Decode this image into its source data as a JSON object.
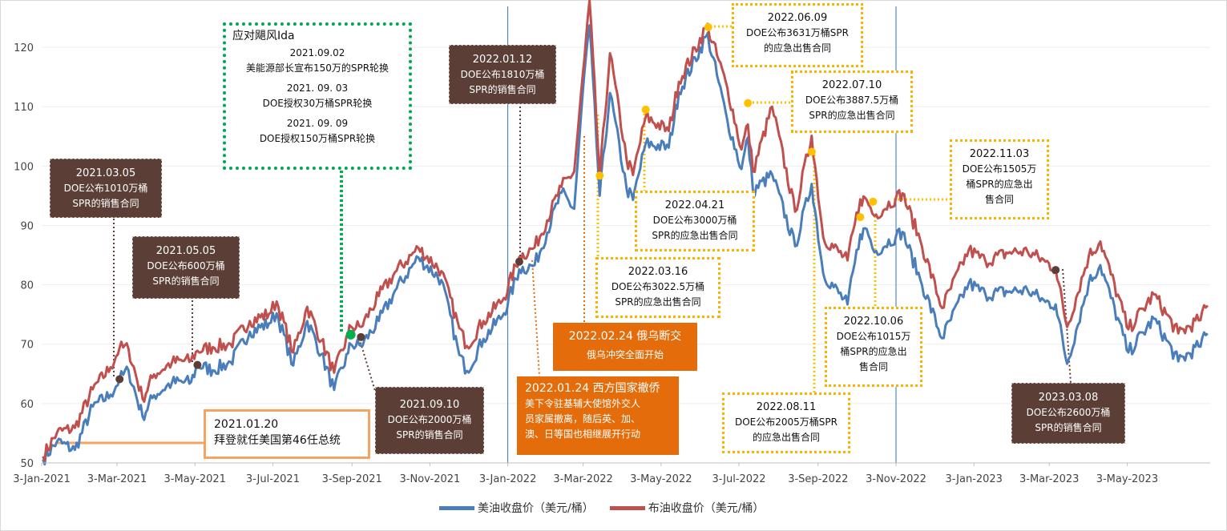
{
  "chart_data": {
    "type": "line",
    "title": "",
    "xlabel": "",
    "ylabel": "",
    "ylim": [
      50,
      125
    ],
    "yticks": [
      50,
      60,
      70,
      80,
      90,
      100,
      110,
      120
    ],
    "x_range": [
      "2021-01-03",
      "2023-07-07"
    ],
    "x_tick_labels": [
      "3-Jan-2021",
      "3-Mar-2021",
      "3-May-2021",
      "3-Jul-2021",
      "3-Sep-2021",
      "3-Nov-2021",
      "3-Jan-2022",
      "3-Mar-2022",
      "3-May-2022",
      "3-Jul-2022",
      "3-Sep-2022",
      "3-Nov-2022",
      "3-Jan-2023",
      "3-Mar-2023",
      "3-May-2023"
    ],
    "x_tick_dates": [
      "2021-01-03",
      "2021-03-03",
      "2021-05-03",
      "2021-07-03",
      "2021-09-03",
      "2021-11-03",
      "2022-01-03",
      "2022-03-03",
      "2022-05-03",
      "2022-07-03",
      "2022-09-03",
      "2022-11-03",
      "2023-01-03",
      "2023-03-03",
      "2023-05-03"
    ],
    "vertical_lines": [
      "2022-01-03",
      "2022-11-03"
    ],
    "series": [
      {
        "name": "美油收盘价（美元/桶）",
        "color": "#4a7ebb",
        "points": [
          [
            "2021-01-04",
            50.6
          ],
          [
            "2021-01-15",
            53.6
          ],
          [
            "2021-01-29",
            52.2
          ],
          [
            "2021-02-12",
            59.5
          ],
          [
            "2021-02-26",
            61.5
          ],
          [
            "2021-03-05",
            64.1
          ],
          [
            "2021-03-12",
            65.6
          ],
          [
            "2021-03-23",
            57.8
          ],
          [
            "2021-04-01",
            61.4
          ],
          [
            "2021-04-15",
            63.5
          ],
          [
            "2021-04-30",
            63.6
          ],
          [
            "2021-05-05",
            66.5
          ],
          [
            "2021-05-17",
            65.6
          ],
          [
            "2021-05-31",
            67.0
          ],
          [
            "2021-06-15",
            72.1
          ],
          [
            "2021-06-30",
            73.5
          ],
          [
            "2021-07-06",
            75.2
          ],
          [
            "2021-07-19",
            66.4
          ],
          [
            "2021-07-30",
            73.9
          ],
          [
            "2021-08-10",
            68.3
          ],
          [
            "2021-08-20",
            62.3
          ],
          [
            "2021-08-31",
            68.5
          ],
          [
            "2021-09-02",
            70.0
          ],
          [
            "2021-09-10",
            69.7
          ],
          [
            "2021-09-24",
            73.9
          ],
          [
            "2021-10-08",
            79.4
          ],
          [
            "2021-10-25",
            84.6
          ],
          [
            "2021-11-12",
            80.8
          ],
          [
            "2021-11-26",
            68.2
          ],
          [
            "2021-12-02",
            65.5
          ],
          [
            "2021-12-15",
            70.9
          ],
          [
            "2021-12-31",
            75.2
          ],
          [
            "2022-01-12",
            82.6
          ],
          [
            "2022-01-24",
            83.3
          ],
          [
            "2022-02-14",
            95.5
          ],
          [
            "2022-02-24",
            92.8
          ],
          [
            "2022-03-04",
            115.7
          ],
          [
            "2022-03-08",
            123.7
          ],
          [
            "2022-03-16",
            95.0
          ],
          [
            "2022-03-24",
            112.3
          ],
          [
            "2022-04-06",
            96.2
          ],
          [
            "2022-04-11",
            94.3
          ],
          [
            "2022-04-21",
            103.8
          ],
          [
            "2022-05-09",
            103.1
          ],
          [
            "2022-05-17",
            112.4
          ],
          [
            "2022-06-08",
            122.1
          ],
          [
            "2022-06-09",
            121.5
          ],
          [
            "2022-06-24",
            107.6
          ],
          [
            "2022-07-05",
            99.5
          ],
          [
            "2022-07-10",
            104.8
          ],
          [
            "2022-07-14",
            95.8
          ],
          [
            "2022-07-29",
            98.6
          ],
          [
            "2022-08-16",
            86.5
          ],
          [
            "2022-08-29",
            97.0
          ],
          [
            "2022-09-07",
            81.9
          ],
          [
            "2022-09-26",
            76.7
          ],
          [
            "2022-10-06",
            88.5
          ],
          [
            "2022-10-11",
            89.4
          ],
          [
            "2022-10-17",
            85.5
          ],
          [
            "2022-11-03",
            88.2
          ],
          [
            "2022-11-08",
            88.9
          ],
          [
            "2022-11-22",
            80.9
          ],
          [
            "2022-12-09",
            71.0
          ],
          [
            "2022-12-30",
            80.3
          ],
          [
            "2023-01-12",
            78.4
          ],
          [
            "2023-01-31",
            78.9
          ],
          [
            "2023-02-14",
            79.1
          ],
          [
            "2023-02-28",
            77.1
          ],
          [
            "2023-03-08",
            76.7
          ],
          [
            "2023-03-17",
            66.7
          ],
          [
            "2023-04-03",
            80.4
          ],
          [
            "2023-04-12",
            83.3
          ],
          [
            "2023-05-04",
            68.6
          ],
          [
            "2023-05-24",
            74.3
          ],
          [
            "2023-06-12",
            67.1
          ],
          [
            "2023-06-28",
            69.6
          ],
          [
            "2023-07-05",
            71.8
          ]
        ]
      },
      {
        "name": "布油收盘价（美元/桶）",
        "color": "#c0504d",
        "points": [
          [
            "2021-01-04",
            51.1
          ],
          [
            "2021-01-15",
            55.1
          ],
          [
            "2021-01-29",
            55.9
          ],
          [
            "2021-02-12",
            62.4
          ],
          [
            "2021-02-26",
            66.1
          ],
          [
            "2021-03-05",
            69.4
          ],
          [
            "2021-03-12",
            69.2
          ],
          [
            "2021-03-23",
            60.8
          ],
          [
            "2021-04-01",
            64.9
          ],
          [
            "2021-04-15",
            66.9
          ],
          [
            "2021-04-30",
            67.3
          ],
          [
            "2021-05-05",
            68.9
          ],
          [
            "2021-05-17",
            69.5
          ],
          [
            "2021-05-31",
            70.0
          ],
          [
            "2021-06-15",
            73.9
          ],
          [
            "2021-06-30",
            75.1
          ],
          [
            "2021-07-06",
            77.2
          ],
          [
            "2021-07-19",
            68.6
          ],
          [
            "2021-07-30",
            76.3
          ],
          [
            "2021-08-10",
            70.6
          ],
          [
            "2021-08-20",
            65.2
          ],
          [
            "2021-08-31",
            71.6
          ],
          [
            "2021-09-02",
            73.0
          ],
          [
            "2021-09-10",
            72.9
          ],
          [
            "2021-09-24",
            78.1
          ],
          [
            "2021-10-08",
            82.4
          ],
          [
            "2021-10-25",
            86.2
          ],
          [
            "2021-11-12",
            82.3
          ],
          [
            "2021-11-26",
            72.7
          ],
          [
            "2021-12-02",
            69.7
          ],
          [
            "2021-12-15",
            73.9
          ],
          [
            "2021-12-31",
            77.8
          ],
          [
            "2022-01-12",
            84.7
          ],
          [
            "2022-01-24",
            86.3
          ],
          [
            "2022-02-14",
            96.5
          ],
          [
            "2022-02-24",
            99.1
          ],
          [
            "2022-03-04",
            118.1
          ],
          [
            "2022-03-08",
            127.9
          ],
          [
            "2022-03-16",
            98.0
          ],
          [
            "2022-03-24",
            119.0
          ],
          [
            "2022-04-06",
            101.1
          ],
          [
            "2022-04-11",
            98.5
          ],
          [
            "2022-04-21",
            108.3
          ],
          [
            "2022-05-09",
            105.9
          ],
          [
            "2022-05-17",
            114.2
          ],
          [
            "2022-06-08",
            123.6
          ],
          [
            "2022-06-09",
            123.1
          ],
          [
            "2022-06-24",
            113.1
          ],
          [
            "2022-07-05",
            102.8
          ],
          [
            "2022-07-10",
            107.0
          ],
          [
            "2022-07-14",
            99.1
          ],
          [
            "2022-07-29",
            110.0
          ],
          [
            "2022-08-16",
            92.3
          ],
          [
            "2022-08-29",
            105.1
          ],
          [
            "2022-09-07",
            88.0
          ],
          [
            "2022-09-26",
            84.1
          ],
          [
            "2022-10-06",
            94.4
          ],
          [
            "2022-10-11",
            94.3
          ],
          [
            "2022-10-17",
            91.6
          ],
          [
            "2022-11-03",
            94.7
          ],
          [
            "2022-11-08",
            95.4
          ],
          [
            "2022-11-22",
            87.5
          ],
          [
            "2022-12-09",
            76.1
          ],
          [
            "2022-12-30",
            85.9
          ],
          [
            "2023-01-12",
            84.0
          ],
          [
            "2023-01-31",
            85.5
          ],
          [
            "2023-02-14",
            85.6
          ],
          [
            "2023-02-28",
            83.9
          ],
          [
            "2023-03-08",
            82.7
          ],
          [
            "2023-03-17",
            72.9
          ],
          [
            "2023-04-03",
            84.9
          ],
          [
            "2023-04-12",
            87.3
          ],
          [
            "2023-05-04",
            72.5
          ],
          [
            "2023-05-24",
            78.4
          ],
          [
            "2023-06-12",
            71.8
          ],
          [
            "2023-06-28",
            74.0
          ],
          [
            "2023-07-05",
            76.5
          ]
        ]
      }
    ],
    "markers": [
      {
        "date": "2021-03-05",
        "value": 64.1,
        "color": "#5b3f36"
      },
      {
        "date": "2021-05-05",
        "value": 66.5,
        "color": "#5b3f36"
      },
      {
        "date": "2021-09-02",
        "value": 71.6,
        "color": "#00b050"
      },
      {
        "date": "2021-09-10",
        "value": 71.2,
        "color": "#5b3f36"
      },
      {
        "date": "2022-01-12",
        "value": 83.9,
        "color": "#5b3f36"
      },
      {
        "date": "2022-03-16",
        "value": 98.4,
        "color": "#ffc000"
      },
      {
        "date": "2022-04-21",
        "value": 109.5,
        "color": "#ffc000"
      },
      {
        "date": "2022-06-09",
        "value": 123.4,
        "color": "#ffc000"
      },
      {
        "date": "2022-07-10",
        "value": 110.6,
        "color": "#ffc000"
      },
      {
        "date": "2022-08-29",
        "value": 102.4,
        "color": "#ffc000"
      },
      {
        "date": "2022-10-06",
        "value": 91.4,
        "color": "#ffc000"
      },
      {
        "date": "2022-10-16",
        "value": 94.0,
        "color": "#ffc000"
      },
      {
        "date": "2023-03-08",
        "value": 82.5,
        "color": "#5b3f36"
      }
    ]
  },
  "annotations": {
    "a20210120": {
      "date": "2021.01.20",
      "text": "拜登就任美国第46任总统"
    },
    "a20210305": {
      "date": "2021.03.05",
      "line1": "DOE公布1010万桶",
      "line2": "SPR的销售合同"
    },
    "a20210505": {
      "date": "2021.05.05",
      "line1": "DOE公布600万桶",
      "line2": "SPR的销售合同"
    },
    "ida": {
      "title": "应对飓风Ida",
      "e1_date": "2021.09.02",
      "e1_text": "美能源部长宣布150万的SPR轮换",
      "e2_date": "2021. 09. 03",
      "e2_text": "DOE授权30万桶SPR轮换",
      "e3_date": "2021. 09. 09",
      "e3_text": "DOE授权150万桶SPR轮换"
    },
    "a20210910": {
      "date": "2021.09.10",
      "line1": "DOE公布2000万桶",
      "line2": "SPR的销售合同"
    },
    "a20220112": {
      "date": "2022.01.12",
      "line1": "DOE公布1810万桶",
      "line2": "SPR的销售合同"
    },
    "a20220124": {
      "title": "2022.01.24 西方国家撤侨",
      "line1": "美下令驻基辅大使馆外交人",
      "line2": "员家属撤离，随后英、加、",
      "line3": "澳、日等国也相继展开行动"
    },
    "a20220224": {
      "title": "2022.02.24 俄乌断交",
      "line1": "俄乌冲突全面开始"
    },
    "a20220316": {
      "date": "2022.03.16",
      "line1": "DOE公布3022.5万桶",
      "line2": "SPR的应急出售合同"
    },
    "a20220421": {
      "date": "2022.04.21",
      "line1": "DOE公布3000万桶",
      "line2": "SPR的应急出售合同"
    },
    "a20220609": {
      "date": "2022.06.09",
      "line1": "DOE公布3631万桶SPR",
      "line2": "的应急出售合同"
    },
    "a20220710": {
      "date": "2022.07.10",
      "line1": "DOE公布3887.5万桶",
      "line2": "SPR的应急出售合同"
    },
    "a20220811": {
      "date": "2022.08.11",
      "line1": "DOE公布2005万桶SPR",
      "line2": "的应急出售合同"
    },
    "a20221006": {
      "date": "2022.10.06",
      "line1": "DOE公布1015万",
      "line2": "桶SPR的应急出",
      "line3": "售合同"
    },
    "a20221103": {
      "date": "2022.11.03",
      "line1": "DOE公布1505万",
      "line2": "桶SPR的应急出",
      "line3": "售合同"
    },
    "a20230308": {
      "date": "2023.03.08",
      "line1": "DOE公布2600万桶",
      "line2": "SPR的销售合同"
    }
  },
  "legend": {
    "wti": "美油收盘价（美元/桶）",
    "brent": "布油收盘价（美元/桶）"
  }
}
